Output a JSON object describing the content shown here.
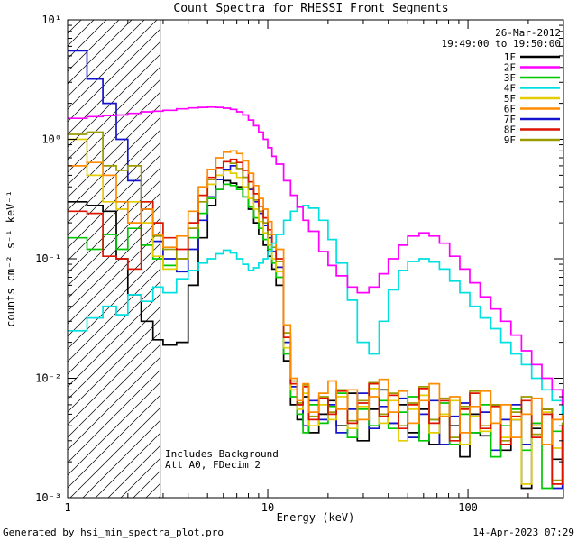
{
  "header": {
    "title": "Count Spectra for RHESSI Front Segments",
    "date": "26-Mar-2012",
    "time_range": "19:49:00 to 19:50:00"
  },
  "annotations": {
    "line1": "Includes Background",
    "line2": "Att A0, FDecim 2"
  },
  "footer": {
    "left": "Generated by hsi_min_spectra_plot.pro",
    "right": "14-Apr-2023 07:29"
  },
  "chart_data": {
    "type": "line",
    "draw_style": "steps",
    "title": "Count Spectra for RHESSI Front Segments",
    "xlabel": "Energy (keV)",
    "ylabel": "counts cm⁻² s⁻¹ keV⁻¹",
    "xscale": "log",
    "yscale": "log",
    "xlim": [
      1,
      300
    ],
    "ylim": [
      0.001,
      10
    ],
    "grid": false,
    "legend_position": "top-right",
    "hatch_region": {
      "xmin": 1,
      "xmax": 2.9
    },
    "x_ticks": [
      {
        "value": 1,
        "label": "1"
      },
      {
        "value": 10,
        "label": "10"
      },
      {
        "value": 100,
        "label": "100"
      }
    ],
    "y_ticks": [
      {
        "value": 0.001,
        "label": "10⁻³"
      },
      {
        "value": 0.01,
        "label": "10⁻²"
      },
      {
        "value": 0.1,
        "label": "10⁻¹"
      },
      {
        "value": 1,
        "label": "10⁰"
      },
      {
        "value": 10,
        "label": "10¹"
      }
    ],
    "z_order": [
      "1F",
      "7F",
      "3F",
      "5F",
      "9F",
      "8F",
      "6F",
      "4F",
      "2F"
    ],
    "x": [
      1,
      1.25,
      1.5,
      1.75,
      2,
      2.33,
      2.67,
      3,
      3.5,
      4,
      4.5,
      5,
      5.5,
      6,
      6.5,
      7,
      7.5,
      8,
      8.5,
      9,
      9.5,
      10,
      10.5,
      11,
      12,
      13,
      14,
      15,
      16,
      18,
      20,
      22,
      25,
      28,
      32,
      36,
      40,
      45,
      50,
      57,
      64,
      72,
      81,
      91,
      102,
      115,
      130,
      146,
      164,
      185,
      208,
      234,
      263,
      296
    ],
    "series": [
      {
        "name": "1F",
        "color": "#000000",
        "values": [
          0.3,
          0.28,
          0.25,
          0.1,
          0.05,
          0.03,
          0.021,
          0.019,
          0.02,
          0.06,
          0.15,
          0.28,
          0.38,
          0.45,
          0.43,
          0.4,
          0.33,
          0.26,
          0.2,
          0.16,
          0.13,
          0.105,
          0.082,
          0.06,
          0.014,
          0.006,
          0.0045,
          0.007,
          0.0035,
          0.005,
          0.0065,
          0.004,
          0.0075,
          0.003,
          0.0055,
          0.008,
          0.0042,
          0.006,
          0.0035,
          0.0055,
          0.0028,
          0.0065,
          0.004,
          0.0022,
          0.005,
          0.0033,
          0.006,
          0.0025,
          0.0045,
          0.0012,
          0.0038,
          0.0055,
          0.0021,
          0.0035
        ]
      },
      {
        "name": "2F",
        "color": "#ff00ff",
        "values": [
          1.5,
          1.55,
          1.58,
          1.6,
          1.65,
          1.7,
          1.72,
          1.75,
          1.8,
          1.83,
          1.85,
          1.86,
          1.85,
          1.82,
          1.78,
          1.7,
          1.6,
          1.45,
          1.3,
          1.15,
          1.0,
          0.85,
          0.72,
          0.62,
          0.45,
          0.34,
          0.27,
          0.21,
          0.17,
          0.115,
          0.088,
          0.072,
          0.058,
          0.052,
          0.058,
          0.075,
          0.1,
          0.13,
          0.155,
          0.165,
          0.155,
          0.135,
          0.105,
          0.082,
          0.063,
          0.048,
          0.038,
          0.03,
          0.023,
          0.017,
          0.013,
          0.01,
          0.008,
          0.006
        ]
      },
      {
        "name": "3F",
        "color": "#00c800",
        "values": [
          0.15,
          0.12,
          0.16,
          0.12,
          0.18,
          0.13,
          0.1,
          0.088,
          0.1,
          0.15,
          0.24,
          0.32,
          0.38,
          0.42,
          0.41,
          0.38,
          0.33,
          0.27,
          0.22,
          0.18,
          0.145,
          0.12,
          0.092,
          0.07,
          0.016,
          0.007,
          0.005,
          0.0035,
          0.006,
          0.0042,
          0.0058,
          0.0075,
          0.0032,
          0.0055,
          0.004,
          0.0065,
          0.0038,
          0.0052,
          0.007,
          0.003,
          0.0045,
          0.0062,
          0.0028,
          0.005,
          0.0035,
          0.006,
          0.0022,
          0.004,
          0.0055,
          0.0025,
          0.0042,
          0.0012,
          0.0036,
          0.0028
        ]
      },
      {
        "name": "4F",
        "color": "#00e0e0",
        "values": [
          0.025,
          0.032,
          0.04,
          0.034,
          0.05,
          0.044,
          0.058,
          0.052,
          0.068,
          0.08,
          0.092,
          0.1,
          0.11,
          0.118,
          0.112,
          0.1,
          0.09,
          0.08,
          0.084,
          0.092,
          0.1,
          0.115,
          0.135,
          0.16,
          0.21,
          0.25,
          0.275,
          0.28,
          0.265,
          0.21,
          0.145,
          0.092,
          0.045,
          0.02,
          0.016,
          0.03,
          0.055,
          0.08,
          0.095,
          0.1,
          0.094,
          0.082,
          0.065,
          0.052,
          0.04,
          0.032,
          0.026,
          0.02,
          0.016,
          0.013,
          0.01,
          0.008,
          0.0065,
          0.005
        ]
      },
      {
        "name": "5F",
        "color": "#e3cc00",
        "values": [
          1.0,
          0.5,
          0.3,
          0.26,
          0.3,
          0.2,
          0.105,
          0.082,
          0.1,
          0.18,
          0.3,
          0.42,
          0.5,
          0.545,
          0.52,
          0.48,
          0.4,
          0.32,
          0.26,
          0.205,
          0.165,
          0.13,
          0.1,
          0.078,
          0.018,
          0.008,
          0.0055,
          0.0075,
          0.004,
          0.006,
          0.0045,
          0.007,
          0.0038,
          0.0058,
          0.0082,
          0.0042,
          0.0065,
          0.003,
          0.0055,
          0.0072,
          0.0035,
          0.005,
          0.0065,
          0.0028,
          0.0048,
          0.0036,
          0.0058,
          0.0032,
          0.0045,
          0.0013,
          0.004,
          0.0052,
          0.0026,
          0.0038
        ]
      },
      {
        "name": "6F",
        "color": "#ff8c00",
        "values": [
          0.6,
          0.64,
          0.5,
          0.3,
          0.2,
          0.26,
          0.16,
          0.125,
          0.155,
          0.25,
          0.4,
          0.56,
          0.7,
          0.78,
          0.8,
          0.76,
          0.66,
          0.52,
          0.41,
          0.32,
          0.26,
          0.205,
          0.16,
          0.12,
          0.028,
          0.01,
          0.0065,
          0.009,
          0.0052,
          0.0075,
          0.0095,
          0.0055,
          0.008,
          0.0045,
          0.007,
          0.0098,
          0.0052,
          0.0078,
          0.0042,
          0.0065,
          0.009,
          0.0048,
          0.007,
          0.0035,
          0.0058,
          0.0078,
          0.0042,
          0.006,
          0.0032,
          0.005,
          0.0068,
          0.0028,
          0.0045,
          0.006
        ]
      },
      {
        "name": "7F",
        "color": "#1414cc",
        "values": [
          5.5,
          3.2,
          2.0,
          1.0,
          0.45,
          0.26,
          0.14,
          0.1,
          0.078,
          0.12,
          0.21,
          0.33,
          0.46,
          0.56,
          0.6,
          0.57,
          0.48,
          0.38,
          0.3,
          0.24,
          0.19,
          0.15,
          0.115,
          0.085,
          0.02,
          0.0085,
          0.006,
          0.004,
          0.0065,
          0.0045,
          0.006,
          0.0035,
          0.0055,
          0.0075,
          0.0038,
          0.0058,
          0.0042,
          0.0068,
          0.0032,
          0.005,
          0.0065,
          0.0028,
          0.0048,
          0.0062,
          0.0035,
          0.0052,
          0.0025,
          0.0045,
          0.006,
          0.0028,
          0.0042,
          0.0055,
          0.0012,
          0.0038
        ]
      },
      {
        "name": "8F",
        "color": "#dc1400",
        "values": [
          0.25,
          0.24,
          0.105,
          0.1,
          0.082,
          0.3,
          0.2,
          0.15,
          0.12,
          0.2,
          0.34,
          0.48,
          0.58,
          0.65,
          0.68,
          0.64,
          0.55,
          0.44,
          0.35,
          0.275,
          0.22,
          0.175,
          0.135,
          0.1,
          0.022,
          0.009,
          0.006,
          0.0085,
          0.0045,
          0.0068,
          0.005,
          0.0078,
          0.0042,
          0.0062,
          0.009,
          0.0048,
          0.0072,
          0.0038,
          0.006,
          0.0082,
          0.0042,
          0.0065,
          0.003,
          0.0055,
          0.0075,
          0.0038,
          0.0058,
          0.0028,
          0.0048,
          0.0065,
          0.0032,
          0.005,
          0.0013,
          0.004
        ]
      },
      {
        "name": "9F",
        "color": "#9a9a00",
        "values": [
          1.1,
          1.15,
          0.6,
          0.55,
          0.6,
          0.3,
          0.155,
          0.12,
          0.1,
          0.18,
          0.3,
          0.46,
          0.58,
          0.65,
          0.63,
          0.57,
          0.48,
          0.39,
          0.31,
          0.25,
          0.2,
          0.16,
          0.125,
          0.095,
          0.024,
          0.0095,
          0.0062,
          0.0088,
          0.0048,
          0.007,
          0.0052,
          0.008,
          0.0044,
          0.0065,
          0.0092,
          0.005,
          0.0075,
          0.004,
          0.0062,
          0.0085,
          0.0045,
          0.0068,
          0.0032,
          0.0058,
          0.0078,
          0.004,
          0.006,
          0.003,
          0.0052,
          0.007,
          0.0034,
          0.0055,
          0.0014,
          0.0042
        ]
      }
    ]
  }
}
